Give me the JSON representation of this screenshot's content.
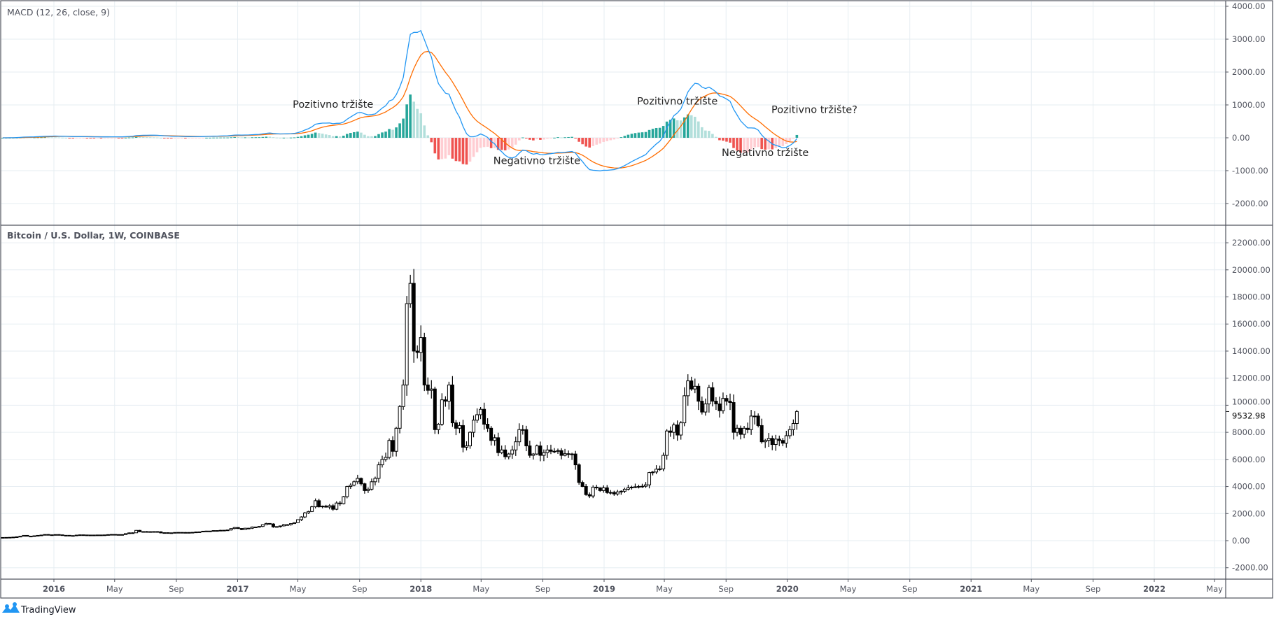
{
  "chart_data": {
    "type": "candlestick",
    "title": "Bitcoin / U.S. Dollar, 1W, COINBASE",
    "interval": "1W",
    "start_week": "2015-09-21",
    "closes": [
      235,
      240,
      247,
      262,
      285,
      325,
      390,
      330,
      325,
      360,
      390,
      415,
      455,
      420,
      430,
      450,
      430,
      380,
      395,
      375,
      375,
      410,
      430,
      420,
      415,
      410,
      415,
      420,
      420,
      425,
      445,
      460,
      450,
      450,
      445,
      525,
      575,
      580,
      760,
      660,
      670,
      650,
      665,
      670,
      655,
      575,
      590,
      575,
      580,
      605,
      610,
      605,
      600,
      605,
      615,
      640,
      650,
      700,
      710,
      705,
      745,
      735,
      765,
      770,
      790,
      895,
      970,
      900,
      820,
      920,
      920,
      1010,
      1010,
      1050,
      1180,
      1270,
      1230,
      1020,
      1040,
      1090,
      1180,
      1180,
      1260,
      1330,
      1550,
      1750,
      2050,
      2150,
      2500,
      2950,
      2500,
      2550,
      2480,
      2580,
      2320,
      2780,
      2730,
      3250,
      4000,
      4100,
      4350,
      4600,
      4200,
      3700,
      3800,
      4350,
      4600,
      5600,
      6000,
      6150,
      7400,
      6600,
      8300,
      9900,
      11500,
      17500,
      19000,
      14000,
      13900,
      15000,
      11500,
      11100,
      11200,
      8200,
      8600,
      10400,
      10300,
      11500,
      8700,
      8300,
      8500,
      6900,
      7000,
      8000,
      8900,
      9300,
      9700,
      8600,
      8300,
      7400,
      7600,
      6500,
      6700,
      6200,
      6400,
      6700,
      7300,
      8200,
      8200,
      7000,
      6300,
      6400,
      7000,
      6300,
      6500,
      6700,
      6600,
      6600,
      6650,
      6300,
      6420,
      6400,
      6400,
      5600,
      4300,
      4000,
      3400,
      3300,
      3950,
      3900,
      3700,
      3900,
      3550,
      3560,
      3450,
      3600,
      3650,
      3800,
      3900,
      3950,
      3980,
      4000,
      4020,
      4120,
      5030,
      5070,
      5280,
      5300,
      6300,
      8100,
      8000,
      8550,
      7800,
      8700,
      10700,
      11800,
      11200,
      11400,
      10300,
      9500,
      10100,
      11300,
      10300,
      10100,
      9600,
      10500,
      10300,
      10200,
      8000,
      8300,
      7850,
      8300,
      8200,
      9200,
      9200,
      8500,
      7300,
      7400,
      7550,
      7100,
      7500,
      7400,
      7200,
      7750,
      8200,
      8650,
      9532.98
    ],
    "last_price_label": "9532.98",
    "price_axis": {
      "range": [
        -2000,
        22000
      ],
      "ticks": [
        "22000.00",
        "20000.00",
        "18000.00",
        "16000.00",
        "14000.00",
        "12000.00",
        "10000.00",
        "8000.00",
        "6000.00",
        "4000.00",
        "2000.00",
        "0.00",
        "-2000.00"
      ],
      "tick_values": [
        22000,
        20000,
        18000,
        16000,
        14000,
        12000,
        10000,
        8000,
        6000,
        4000,
        2000,
        0,
        -2000
      ]
    },
    "macd": {
      "legend": "MACD (12, 26, close, 9)",
      "fast": 12,
      "slow": 26,
      "signal": 9,
      "range": [
        -2500,
        4000
      ],
      "ticks": [
        "4000.00",
        "3000.00",
        "2000.00",
        "1000.00",
        "0.00",
        "-1000.00",
        "-2000.00"
      ],
      "tick_values": [
        4000,
        3000,
        2000,
        1000,
        0,
        -1000,
        -2000
      ],
      "colors": {
        "macd_line": "#2196F3",
        "signal_line": "#FF6D00",
        "hist_up_strong": "#26A69A",
        "hist_up_weak": "#B2DFDB",
        "hist_down_strong": "#EF5350",
        "hist_down_weak": "#FFCDD2"
      }
    },
    "time_axis": [
      {
        "label": "2016",
        "date": "2016-01-01",
        "year": true
      },
      {
        "label": "May",
        "date": "2016-05-01"
      },
      {
        "label": "Sep",
        "date": "2016-09-01"
      },
      {
        "label": "2017",
        "date": "2017-01-01",
        "year": true
      },
      {
        "label": "May",
        "date": "2017-05-01"
      },
      {
        "label": "Sep",
        "date": "2017-09-01"
      },
      {
        "label": "2018",
        "date": "2018-01-01",
        "year": true
      },
      {
        "label": "May",
        "date": "2018-05-01"
      },
      {
        "label": "Sep",
        "date": "2018-09-01"
      },
      {
        "label": "2019",
        "date": "2019-01-01",
        "year": true
      },
      {
        "label": "May",
        "date": "2019-05-01"
      },
      {
        "label": "Sep",
        "date": "2019-09-01"
      },
      {
        "label": "2020",
        "date": "2020-01-01",
        "year": true
      },
      {
        "label": "May",
        "date": "2020-05-01"
      },
      {
        "label": "Sep",
        "date": "2020-09-01"
      },
      {
        "label": "2021",
        "date": "2021-01-01",
        "year": true
      },
      {
        "label": "May",
        "date": "2021-05-01"
      },
      {
        "label": "Sep",
        "date": "2021-09-01"
      },
      {
        "label": "2022",
        "date": "2022-01-01",
        "year": true
      },
      {
        "label": "May",
        "date": "2022-05-01"
      }
    ],
    "annotations": [
      {
        "text": "Pozitivno tržište",
        "date": "2017-07-10",
        "macd_value": 920
      },
      {
        "text": "Negativno tržište",
        "date": "2018-08-20",
        "macd_value": -800
      },
      {
        "text": "Pozitivno tržište",
        "date": "2019-05-27",
        "macd_value": 1010
      },
      {
        "text": "Negativno tržište",
        "date": "2019-11-18",
        "macd_value": -550
      },
      {
        "text": "Pozitivno tržište?",
        "date": "2020-02-24",
        "macd_value": 760
      }
    ]
  },
  "branding": {
    "logo_text": "TradingView"
  }
}
